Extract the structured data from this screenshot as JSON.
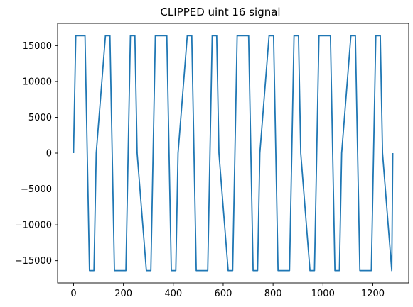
{
  "chart_data": {
    "type": "line",
    "title": "CLIPPED uint 16 signal",
    "xlabel": "",
    "ylabel": "",
    "xlim": [
      -64,
      1344
    ],
    "ylim": [
      -18100,
      18100
    ],
    "xticks": [
      0,
      200,
      400,
      600,
      800,
      1000,
      1200
    ],
    "yticks": [
      -15000,
      -10000,
      -5000,
      0,
      5000,
      10000,
      15000
    ],
    "xtick_labels": [
      "0",
      "200",
      "400",
      "600",
      "800",
      "1000",
      "1200"
    ],
    "ytick_labels": [
      "−15000",
      "−10000",
      "−5000",
      "0",
      "5000",
      "10000",
      "15000"
    ],
    "grid": false,
    "line_color": "#1f77b4",
    "series": [
      {
        "x": [
          0,
          9,
          46,
          55,
          64,
          73,
          82,
          91,
          128,
          137,
          146,
          155,
          164,
          173,
          210,
          219,
          228,
          237,
          246,
          255,
          292,
          301,
          310,
          319,
          328,
          337,
          374,
          383,
          392,
          401,
          410,
          419,
          456,
          465,
          474,
          483,
          492,
          501,
          538,
          547,
          556,
          565,
          574,
          583,
          620,
          629,
          638,
          647,
          656,
          665,
          702,
          711,
          720,
          729,
          738,
          747,
          784,
          793,
          802,
          811,
          820,
          829,
          866,
          875,
          884,
          893,
          902,
          911,
          948,
          957,
          966,
          975,
          984,
          993,
          1030,
          1039,
          1048,
          1057,
          1066,
          1075,
          1112,
          1121,
          1130,
          1139,
          1148,
          1157,
          1194,
          1203,
          1212,
          1221,
          1230,
          1239,
          1276,
          1280
        ],
        "y": [
          0,
          16384,
          16384,
          0,
          -16384,
          -16384,
          -16384,
          0,
          16384,
          16384,
          16384,
          0,
          -16384,
          -16384,
          -16384,
          0,
          16384,
          16384,
          16384,
          0,
          -16384,
          -16384,
          -16384,
          0,
          16384,
          16384,
          16384,
          0,
          -16384,
          -16384,
          -16384,
          0,
          16384,
          16384,
          16384,
          0,
          -16384,
          -16384,
          -16384,
          0,
          16384,
          16384,
          16384,
          0,
          -16384,
          -16384,
          -16384,
          0,
          16384,
          16384,
          16384,
          0,
          -16384,
          -16384,
          -16384,
          0,
          16384,
          16384,
          16384,
          0,
          -16384,
          -16384,
          -16384,
          0,
          16384,
          16384,
          16384,
          0,
          -16384,
          -16384,
          -16384,
          0,
          16384,
          16384,
          16384,
          0,
          -16384,
          -16384,
          -16384,
          0,
          16384,
          16384,
          16384,
          0,
          -16384,
          -16384,
          -16384,
          0,
          16384,
          16384,
          16384,
          0,
          -16384,
          0
        ]
      }
    ]
  }
}
